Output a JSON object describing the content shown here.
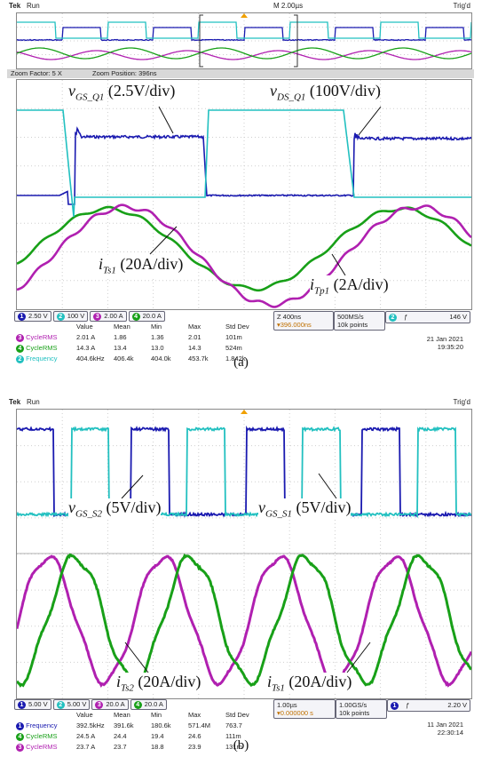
{
  "colors": {
    "ch1": "#1a1ab0",
    "ch2": "#22c0c0",
    "ch3": "#b020b0",
    "ch4": "#18a018",
    "trig": "#f0a000"
  },
  "top": {
    "status": {
      "brand": "Tek",
      "run": "Run",
      "timebase": "M 2.00µs",
      "trig": "Trig'd"
    },
    "zoom": {
      "factor": "Zoom Factor: 5 X",
      "position": "Zoom Position: 396ns"
    },
    "labels": {
      "vgs_q1": "v",
      "vgs_q1_sub": "GS_Q1",
      "vgs_q1_scale": " (2.5V/div)",
      "vds_q1": "v",
      "vds_q1_sub": "DS_Q1",
      "vds_q1_scale": " (100V/div)",
      "its1": "i",
      "its1_sub": "Ts1",
      "its1_scale": " (20A/div)",
      "itp1": "i",
      "itp1_sub": "Tp1",
      "itp1_scale": " (2A/div)"
    },
    "channels": [
      {
        "n": "1",
        "scale": "2.50 V"
      },
      {
        "n": "2",
        "scale": "100 V"
      },
      {
        "n": "3",
        "scale": "2.00 A"
      },
      {
        "n": "4",
        "scale": "20.0 A"
      }
    ],
    "zbox": {
      "line1": "Z 400ns",
      "line2": "▾396.000ns"
    },
    "acq": {
      "line1": "500MS/s",
      "line2": "10k points"
    },
    "trigbox": {
      "ch": "2",
      "level": "146 V"
    },
    "table": {
      "headers": [
        "Value",
        "Mean",
        "Min",
        "Max",
        "Std Dev"
      ],
      "rows": [
        {
          "ch": "3",
          "name": "CycleRMS",
          "vals": [
            "2.01 A",
            "1.86",
            "1.36",
            "2.01",
            "101m"
          ]
        },
        {
          "ch": "4",
          "name": "CycleRMS",
          "vals": [
            "14.3 A",
            "13.4",
            "13.0",
            "14.3",
            "524m"
          ]
        },
        {
          "ch": "2",
          "name": "Frequency",
          "vals": [
            "404.6kHz",
            "406.4k",
            "404.0k",
            "453.7k",
            "1.842k"
          ]
        }
      ]
    },
    "date": "21 Jan  2021",
    "time": "19:35:20",
    "caption": "(a)"
  },
  "bottom": {
    "status": {
      "brand": "Tek",
      "run": "Run",
      "trig": "Trig'd"
    },
    "labels": {
      "vgs_s2": "v",
      "vgs_s2_sub": "GS_S2",
      "vgs_s2_scale": " (5V/div)",
      "vgs_s1": "v",
      "vgs_s1_sub": "GS_S1",
      "vgs_s1_scale": " (5V/div)",
      "its2": "i",
      "its2_sub": "Ts2",
      "its2_scale": " (20A/div)",
      "its1": "i",
      "its1_sub": "Ts1",
      "its1_scale": " (20A/div)"
    },
    "channels": [
      {
        "n": "1",
        "scale": "5.00 V"
      },
      {
        "n": "2",
        "scale": "5.00 V"
      },
      {
        "n": "3",
        "scale": "20.0 A"
      },
      {
        "n": "4",
        "scale": "20.0 A"
      }
    ],
    "hbox": {
      "line1": "1.00µs",
      "line2": "▾0.000000 s"
    },
    "acq": {
      "line1": "1.00GS/s",
      "line2": "10k points"
    },
    "trigbox": {
      "ch": "1",
      "level": "2.20 V"
    },
    "table": {
      "headers": [
        "Value",
        "Mean",
        "Min",
        "Max",
        "Std Dev"
      ],
      "rows": [
        {
          "ch": "1",
          "name": "Frequency",
          "vals": [
            "392.5kHz",
            "391.6k",
            "180.6k",
            "571.4M",
            "763.7"
          ]
        },
        {
          "ch": "4",
          "name": "CycleRMS",
          "vals": [
            "24.5 A",
            "24.4",
            "19.4",
            "24.6",
            "111m"
          ]
        },
        {
          "ch": "3",
          "name": "CycleRMS",
          "vals": [
            "23.7 A",
            "23.7",
            "18.8",
            "23.9",
            "131m"
          ]
        }
      ]
    },
    "date": "11 Jan  2021",
    "time": "22:30:14",
    "caption": "(b)"
  }
}
